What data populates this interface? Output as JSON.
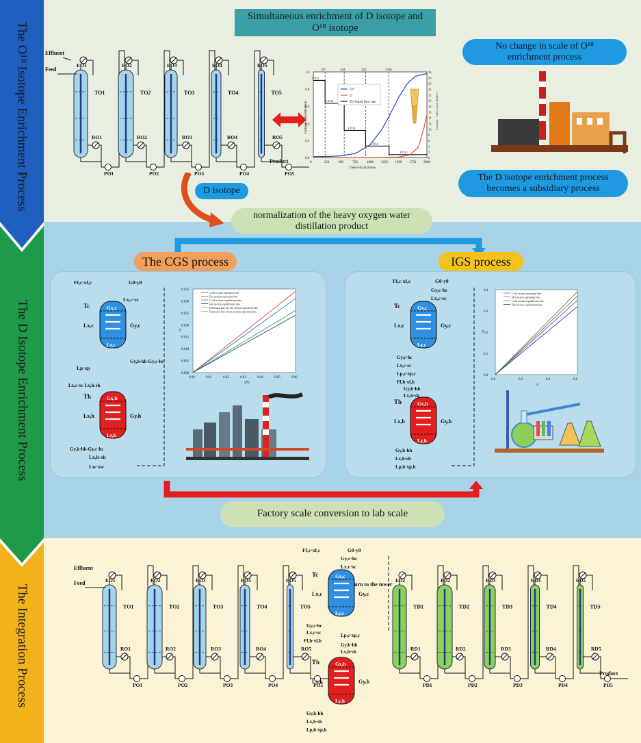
{
  "sections": [
    {
      "label": "The O¹⁸ Isotope Enrichment Process",
      "color": "#1f5fbf"
    },
    {
      "label": "The D Isotope Enrichment Process",
      "color": "#1f9a4a"
    },
    {
      "label": "The Integration Process",
      "color": "#f2b21a"
    }
  ],
  "section1": {
    "title_line1": "Simultaneous enrichment of D isotope and",
    "title_line2": "O¹⁸ isotope",
    "no_change_line1": "No change in scale of O¹⁸",
    "no_change_line2": "enrichment process",
    "subsidiary_line1": "The D isotope enrichment process",
    "subsidiary_line2": "becomes a subsidiary process",
    "d_isotope": "D isotope",
    "effluent": "Effluent",
    "feed": "Feed",
    "product": "Product",
    "towers": [
      "TO1",
      "TO2",
      "TO3",
      "TO4",
      "TO5"
    ],
    "condensers": [
      "EO1",
      "EO2",
      "EO3",
      "EO4",
      "EO5"
    ],
    "reboilers": [
      "RO1",
      "RO2",
      "RO3",
      "RO4",
      "RO5"
    ],
    "pumps": [
      "PO1",
      "PO2",
      "PO3",
      "PO4",
      "PO5"
    ]
  },
  "normalization": {
    "line1": "normalization of the heavy oxygen water",
    "line2": "distillation product"
  },
  "section2": {
    "cgs": "The CGS process",
    "igs": "IGS process",
    "factory": "Factory scale conversion to lab scale",
    "cgs_labels": {
      "feed": "Ff,c·xf,c",
      "g0": "G0·y0",
      "lxc_sc": "Lx,c·sc",
      "tc": "Tc",
      "gyc": "Gy,c",
      "lxc": "Lx,c",
      "gxc": "Gx,c",
      "lyc": "Ly,c",
      "lp": "Lp·xp",
      "mid1": "Gy,h·hh-Gy,c·hc",
      "mid2": "Lx,c·sc-Lx,h·sh",
      "th": "Th",
      "gxh": "Gx,h",
      "lxh": "Lx,h",
      "gyh": "Gy,h",
      "lyh": "Ly,h",
      "bot1": "Gy,h·hh-Gy,c·hc",
      "bot2": "Lx,h·sh",
      "lw": "Lw·xw"
    },
    "igs_labels": {
      "feed": "Ff,c·xf,c",
      "g0": "G0·y0",
      "gyc_hc": "Gy,c·hc",
      "lxc_sc": "Lx,c·sc",
      "tc": "Tc",
      "gyc": "Gy,c",
      "lxc": "Lx,c",
      "gxc": "Gx,c",
      "lyc": "Ly,c",
      "m1": "Gy,c·hc",
      "m2": "Lx,c·sc",
      "m3": "Lp,c·xp,c",
      "m4": "Ff,h·xf,h",
      "m5": "Gy,h·hh",
      "m6": "Lx,h·sh",
      "th": "Th",
      "gxh": "Gx,h",
      "lxh": "Lx,h",
      "gyh": "Gy,h",
      "lyh": "Ly,h",
      "b1": "Gy,h·hh",
      "b2": "Lx,h·sh",
      "b3": "Lp,h·xp,h"
    }
  },
  "section3": {
    "return": "Return to the tower",
    "effluent": "Effluent",
    "feed": "Feed",
    "product": "Product",
    "o_towers": [
      "TO1",
      "TO2",
      "TO3",
      "TO4",
      "TO5"
    ],
    "o_condensers": [
      "EO1",
      "EO2",
      "EO3",
      "EO4",
      "EO5"
    ],
    "o_reboilers": [
      "RO1",
      "RO2",
      "RO3",
      "RO4",
      "RO5"
    ],
    "o_pumps": [
      "PO1",
      "PO2",
      "PO3",
      "PO4",
      "PO5"
    ],
    "d_towers": [
      "TD1",
      "TD2",
      "TD3",
      "TD4",
      "TD5"
    ],
    "d_condensers": [
      "ED2",
      "ED2",
      "ED3",
      "ED4",
      "ED5"
    ],
    "d_reboilers": [
      "RD1",
      "RD2",
      "RD3",
      "RD4",
      "RD5"
    ],
    "d_pumps": [
      "PD1",
      "PD2",
      "PD3",
      "PD4",
      "PD5"
    ],
    "ex_labels": {
      "feed": "Ff,c·xf,c",
      "g0": "G0·y0",
      "gyc_hc": "Gy,c·hc",
      "lxc_sc": "Lx,c·sc",
      "tc": "Tc",
      "gyc": "Gy,c",
      "lxc": "Lx,c",
      "gxc": "Gx,c",
      "lyc": "Ly,c",
      "m1": "Gy,c·hc",
      "m2": "Lx,c·sc",
      "m3": "Lp,c·xp,c",
      "m4": "Ff,h·xf,h",
      "m5": "Gy,h·hh",
      "m6": "Lx,h·sh",
      "th": "Th",
      "gxh": "Gx,h",
      "lxh": "Lx,h",
      "gyh": "Gy,h",
      "lyh": "Ly,h",
      "b1": "Gy,h·hh",
      "b2": "Lx,h·sh",
      "b3": "Lp,h·xp,h"
    }
  },
  "top_chart": {
    "type": "line",
    "xlabel": "Theoretical plates",
    "ylabel_left": "Isotope concentration",
    "ylabel_right": "Liquid flows rate，kmol/hr",
    "x_ticks": [
      "0",
      "250",
      "500",
      "750",
      "1000",
      "1250",
      "1500",
      "1750",
      "2000"
    ],
    "yl_ticks": [
      "0.0",
      "0.2",
      "0.4",
      "0.6",
      "0.8",
      "1.0"
    ],
    "yr_ticks": [
      "0",
      "2",
      "4",
      "6",
      "8",
      "10",
      "12",
      "14",
      "16",
      "18",
      "20",
      "22",
      "24",
      "26",
      "28",
      "30"
    ],
    "top_ticks": [
      "207",
      "544",
      "921",
      "1334"
    ],
    "legend": [
      "O¹⁸",
      "D",
      "TO liquid flow rate"
    ],
    "step_labels": [
      "LTO1",
      "LTO2",
      "LTO3",
      "LTO4",
      "LTO5"
    ],
    "xlim": [
      0,
      2000
    ],
    "ylim_left": [
      0,
      1
    ],
    "ylim_right": [
      0,
      30
    ],
    "o18": [
      [
        0,
        0.01
      ],
      [
        250,
        0.012
      ],
      [
        500,
        0.02
      ],
      [
        750,
        0.05
      ],
      [
        1000,
        0.15
      ],
      [
        1200,
        0.32
      ],
      [
        1350,
        0.5
      ],
      [
        1500,
        0.7
      ],
      [
        1650,
        0.86
      ],
      [
        1800,
        0.95
      ],
      [
        2000,
        0.98
      ]
    ],
    "d": [
      [
        0,
        0.0
      ],
      [
        1000,
        0.0
      ],
      [
        1500,
        0.005
      ],
      [
        1700,
        0.03
      ],
      [
        1850,
        0.12
      ],
      [
        1950,
        0.35
      ],
      [
        2000,
        0.5
      ]
    ],
    "flow": [
      [
        0,
        27
      ],
      [
        207,
        27
      ],
      [
        207,
        19
      ],
      [
        544,
        19
      ],
      [
        544,
        9.5
      ],
      [
        921,
        9.5
      ],
      [
        921,
        4
      ],
      [
        1334,
        4
      ],
      [
        1334,
        1
      ],
      [
        2000,
        1
      ]
    ]
  },
  "cgs_chart": {
    "type": "line",
    "xlabel": "x%",
    "ylabel": "y",
    "legend": [
      "Cold section operation line",
      "Hot section operation line",
      "Cold section equilibrium line",
      "Hot section equilibrium line",
      "Extension line of cold section operation line",
      "Extension line of hot section operation line"
    ],
    "x_ticks": [
      "0.00",
      "0.01",
      "0.02",
      "0.03",
      "0.04",
      "0.05",
      "0.06"
    ],
    "y_ticks": [
      "0.000",
      "0.005",
      "0.010",
      "0.015",
      "0.020",
      "0.025",
      "0.030",
      "0.035"
    ],
    "xlim": [
      0,
      0.06
    ],
    "ylim": [
      0,
      0.035
    ],
    "series": [
      {
        "name": "Cold section operation line",
        "color": "#2e6fd6",
        "points": [
          [
            0.0,
            0.0
          ],
          [
            0.06,
            0.031
          ]
        ]
      },
      {
        "name": "Hot section operation line",
        "color": "#e0443a",
        "points": [
          [
            0.0,
            0.0
          ],
          [
            0.06,
            0.034
          ]
        ]
      },
      {
        "name": "Cold section equilibrium line",
        "color": "#2aa84a",
        "points": [
          [
            0.0,
            0.0
          ],
          [
            0.06,
            0.026
          ]
        ]
      },
      {
        "name": "Hot section equilibrium line",
        "color": "#1d3c8a",
        "points": [
          [
            0.0,
            0.0
          ],
          [
            0.06,
            0.024
          ]
        ]
      }
    ]
  },
  "igs_chart": {
    "type": "line",
    "xlabel": "x",
    "ylabel": "y",
    "legend": [
      "Cold section operating line",
      "Hot section operating line",
      "Cold section equilibrium line",
      "Hot section equilibrium line"
    ],
    "x_ticks": [
      "0.0",
      "0.2",
      "0.4",
      "0.6"
    ],
    "y_ticks": [
      "0.0",
      "0.1",
      "0.2",
      "0.3",
      "0.4"
    ],
    "xlim": [
      0,
      0.7
    ],
    "ylim": [
      0,
      0.4
    ],
    "series": [
      {
        "name": "Cold section operating line",
        "color": "#2e6fd6",
        "points": [
          [
            0.0,
            0.0
          ],
          [
            0.7,
            0.35
          ]
        ]
      },
      {
        "name": "Hot section operating line",
        "color": "#e0443a",
        "points": [
          [
            0.0,
            0.0
          ],
          [
            0.7,
            0.37
          ]
        ]
      },
      {
        "name": "Cold section equilibrium line",
        "color": "#2aa84a",
        "points": [
          [
            0.0,
            0.0
          ],
          [
            0.7,
            0.39
          ]
        ]
      },
      {
        "name": "Hot section equilibrium line",
        "color": "#1d3c8a",
        "points": [
          [
            0.0,
            0.0
          ],
          [
            0.7,
            0.32
          ]
        ]
      }
    ]
  },
  "colors": {
    "panel1": "#e9efe0",
    "panel2": "#a9d4e8",
    "panel3": "#fbf3d5",
    "tower_blue": "#a7d3e6",
    "tower_green": "#8ccf5a",
    "cold": "#2f8fe0",
    "hot": "#e21e1e",
    "pill_blue": "#1f9ae0",
    "pill_orange": "#f0a05c",
    "pill_gold": "#f5c21b",
    "pill_green": "#cde0b6",
    "title_teal": "#3c9fa8"
  }
}
